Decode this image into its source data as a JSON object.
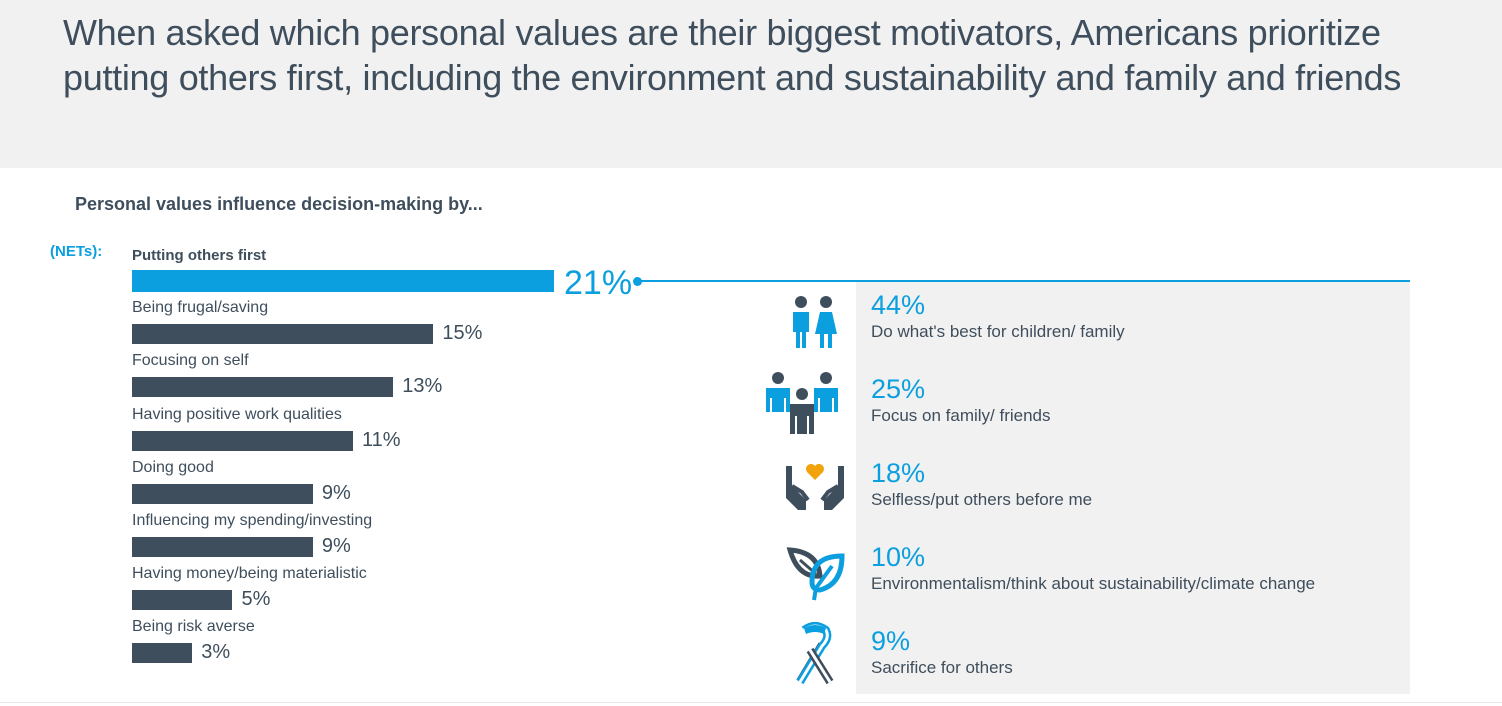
{
  "header": {
    "title": "When asked which personal values are their biggest motivators, Americans prioritize putting others first, including the environment and sustainability and family and friends"
  },
  "colors": {
    "accent": "#0b9fe0",
    "bar": "#3f4e5c",
    "heart": "#f0a30a",
    "panel": "#f1f1f1"
  },
  "chart_data": {
    "type": "bar",
    "orientation": "horizontal",
    "title": "Personal values influence decision-making by...",
    "series_label": "(NETs):",
    "categories": [
      "Putting others first",
      "Being frugal/saving",
      "Focusing on self",
      "Having positive work qualities",
      "Doing good",
      "Influencing my spending/investing",
      "Having money/being materialistic",
      "Being risk averse"
    ],
    "values": [
      21,
      15,
      13,
      11,
      9,
      9,
      5,
      3
    ],
    "value_labels": [
      "21%",
      "15%",
      "13%",
      "11%",
      "9%",
      "9%",
      "5%",
      "3%"
    ],
    "highlighted": "Putting others first",
    "unit": "%",
    "xlabel": "",
    "ylabel": "",
    "grid": false
  },
  "breakdown": {
    "parent": "Putting others first",
    "items": [
      {
        "icon": "children-icon",
        "value": 44,
        "value_label": "44%",
        "label": "Do what's best for children/ family"
      },
      {
        "icon": "family-friends-icon",
        "value": 25,
        "value_label": "25%",
        "label": "Focus on family/ friends"
      },
      {
        "icon": "hands-heart-icon",
        "value": 18,
        "value_label": "18%",
        "label": "Selfless/put others before me"
      },
      {
        "icon": "leaf-icon",
        "value": 10,
        "value_label": "10%",
        "label": "Environmentalism/think about sustainability/climate change"
      },
      {
        "icon": "ribbon-icon",
        "value": 9,
        "value_label": "9%",
        "label": "Sacrifice for others"
      }
    ]
  }
}
